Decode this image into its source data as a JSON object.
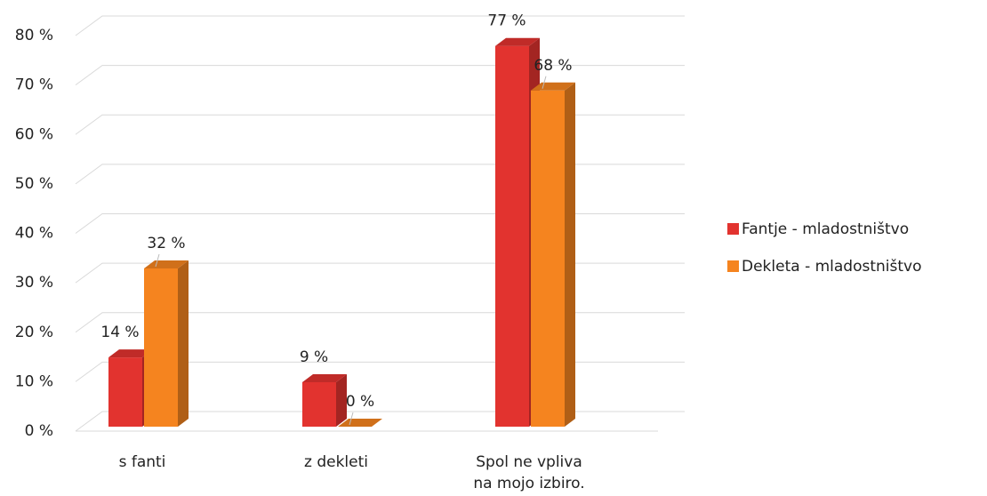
{
  "chart_data": {
    "type": "bar3d",
    "categories": [
      "s fanti",
      "z dekleti",
      "Spol ne vpliva na mojo izbiro."
    ],
    "series": [
      {
        "name": "Fantje - mladostništvo",
        "color": "#e2332f",
        "values": [
          14,
          9,
          77
        ],
        "value_labels": [
          "14 %",
          "9 %",
          "77 %"
        ]
      },
      {
        "name": "Dekleta - mladostništvo",
        "color": "#f5841f",
        "values": [
          32,
          0,
          68
        ],
        "value_labels": [
          "32 %",
          "0 %",
          "68 %"
        ]
      }
    ],
    "ylim": [
      0,
      80
    ],
    "yticks": [
      {
        "value": 0,
        "label": "0 %"
      },
      {
        "value": 10,
        "label": "10 %"
      },
      {
        "value": 20,
        "label": "20 %"
      },
      {
        "value": 30,
        "label": "30 %"
      },
      {
        "value": 40,
        "label": "40 %"
      },
      {
        "value": 50,
        "label": "50 %"
      },
      {
        "value": 60,
        "label": "60 %"
      },
      {
        "value": 70,
        "label": "70 %"
      },
      {
        "value": 80,
        "label": "80 %"
      }
    ],
    "grid": true,
    "legend": "right"
  }
}
